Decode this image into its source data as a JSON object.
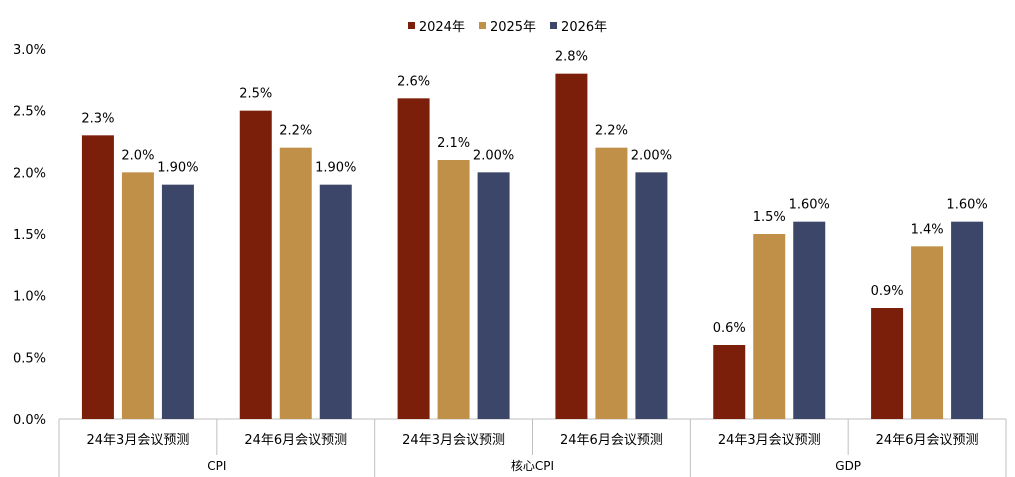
{
  "chart_data": {
    "type": "bar",
    "legend_position": "top-center",
    "grid": false,
    "ylim": [
      0,
      3.0
    ],
    "y_ticks": [
      "0.0%",
      "0.5%",
      "1.0%",
      "1.5%",
      "2.0%",
      "2.5%",
      "3.0%"
    ],
    "y_tick_values": [
      0,
      0.5,
      1.0,
      1.5,
      2.0,
      2.5,
      3.0
    ],
    "groups": [
      {
        "name": "CPI",
        "categories": [
          "24年3月会议预测",
          "24年6月会议预测"
        ]
      },
      {
        "name": "核心CPI",
        "categories": [
          "24年3月会议预测",
          "24年6月会议预测"
        ]
      },
      {
        "name": "GDP",
        "categories": [
          "24年3月会议预测",
          "24年6月会议预测"
        ]
      }
    ],
    "series": [
      {
        "name": "2024年",
        "color": "#7B1E0A",
        "values": [
          2.3,
          2.5,
          2.6,
          2.8,
          0.6,
          0.9
        ],
        "labels": [
          "2.3%",
          "2.5%",
          "2.6%",
          "2.8%",
          "0.6%",
          "0.9%"
        ]
      },
      {
        "name": "2025年",
        "color": "#C09048",
        "values": [
          2.0,
          2.2,
          2.1,
          2.2,
          1.5,
          1.4
        ],
        "labels": [
          "2.0%",
          "2.2%",
          "2.1%",
          "2.2%",
          "1.5%",
          "1.4%"
        ]
      },
      {
        "name": "2026年",
        "color": "#3B4668",
        "values": [
          1.9,
          1.9,
          2.0,
          2.0,
          1.6,
          1.6
        ],
        "labels": [
          "1.90%",
          "1.90%",
          "2.00%",
          "2.00%",
          "1.60%",
          "1.60%"
        ]
      }
    ]
  }
}
